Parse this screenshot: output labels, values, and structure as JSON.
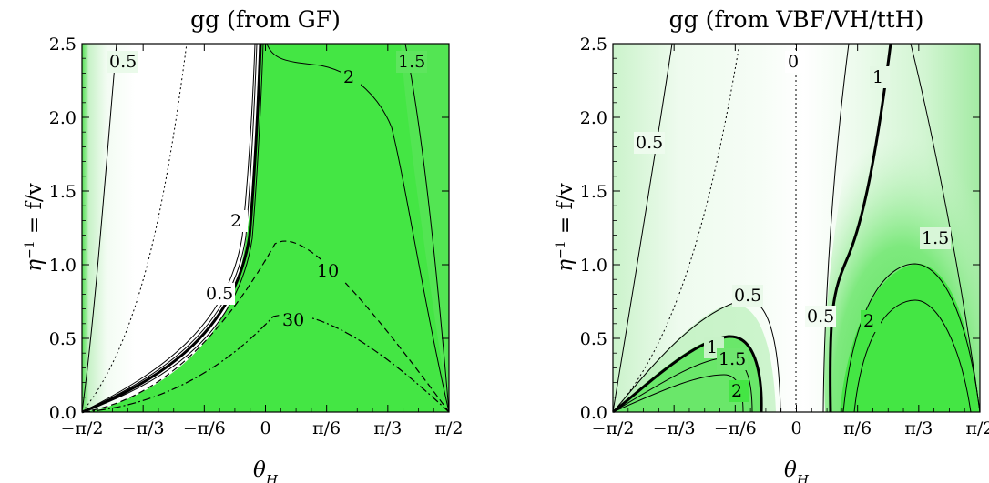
{
  "chart_data": [
    {
      "type": "contour",
      "title": "gg (from GF)",
      "xlabel": "θ_H",
      "ylabel": "η⁻¹ = f/v",
      "xlim": [
        "-π/2",
        "π/2"
      ],
      "ylim": [
        0,
        2.5
      ],
      "x_ticks": [
        "−π/2",
        "−π/3",
        "−π/6",
        "0",
        "π/6",
        "π/3",
        "π/2"
      ],
      "y_ticks": [
        "0.0",
        "0.5",
        "1.0",
        "1.5",
        "2.0",
        "2.5"
      ],
      "contour_labels": [
        "0.5",
        "2",
        "0.5",
        "2",
        "1.5",
        "10",
        "30"
      ],
      "colors": {
        "high": "#44e644",
        "low": "#ffffff"
      }
    },
    {
      "type": "contour",
      "title": "gg (from VBF/VH/ttH)",
      "xlabel": "θ_H",
      "ylabel": "η⁻¹ = f/v",
      "xlim": [
        "-π/2",
        "π/2"
      ],
      "ylim": [
        0,
        2.5
      ],
      "x_ticks": [
        "−π/2",
        "−π/3",
        "−π/6",
        "0",
        "π/6",
        "π/3",
        "π/2"
      ],
      "y_ticks": [
        "0.0",
        "0.5",
        "1.0",
        "1.5",
        "2.0",
        "2.5"
      ],
      "contour_labels": [
        "0",
        "1",
        "0.5",
        "0.5",
        "1",
        "1.5",
        "2",
        "0.5",
        "1.5",
        "2"
      ],
      "colors": {
        "high": "#44e644",
        "low": "#ffffff"
      }
    }
  ]
}
